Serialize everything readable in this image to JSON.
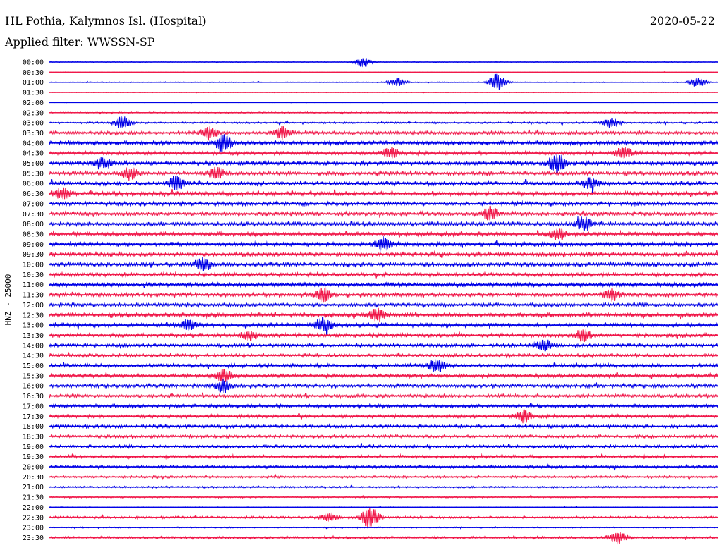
{
  "header": {
    "station": "HL Pothia, Kalymnos Isl. (Hospital)",
    "filter": "Applied filter: WWSSN-SP",
    "date": "2020-05-22"
  },
  "colors": {
    "odd": "#0000e6",
    "even": "#f0184a"
  },
  "chart_data": {
    "type": "line",
    "title": "HL Pothia, Kalymnos Isl. (Hospital)",
    "ylabel": "HNZ - 25000",
    "row_labels": [
      "00:00",
      "00:30",
      "01:00",
      "01:30",
      "02:00",
      "02:30",
      "03:00",
      "03:30",
      "04:00",
      "04:30",
      "05:00",
      "05:30",
      "06:00",
      "06:30",
      "07:00",
      "07:30",
      "08:00",
      "08:30",
      "09:00",
      "09:30",
      "10:00",
      "10:30",
      "11:00",
      "11:30",
      "12:00",
      "12:30",
      "13:00",
      "13:30",
      "14:00",
      "14:30",
      "15:00",
      "15:30",
      "16:00",
      "16:30",
      "17:00",
      "17:30",
      "18:00",
      "18:30",
      "19:00",
      "19:30",
      "20:00",
      "20:30",
      "21:00",
      "21:30",
      "22:00",
      "22:30",
      "23:00",
      "23:30"
    ],
    "noise_level": [
      0.5,
      0.3,
      0.6,
      0.4,
      0.2,
      0.8,
      1.2,
      2.2,
      2.5,
      2.3,
      2.6,
      2.5,
      2.4,
      2.6,
      2.4,
      2.6,
      2.6,
      2.5,
      2.6,
      2.6,
      2.6,
      2.5,
      2.6,
      2.6,
      2.4,
      2.5,
      2.5,
      2.5,
      2.3,
      2.2,
      2.3,
      2.3,
      2.4,
      2.2,
      2.2,
      2.2,
      2.1,
      2.0,
      2.0,
      1.9,
      1.8,
      1.5,
      1.2,
      1.0,
      0.6,
      1.5,
      0.8,
      1.6
    ],
    "events": [
      {
        "row": "00:00",
        "x": 0.47,
        "amp": 7
      },
      {
        "row": "01:00",
        "x": 0.52,
        "amp": 6
      },
      {
        "row": "01:00",
        "x": 0.67,
        "amp": 12
      },
      {
        "row": "01:00",
        "x": 0.97,
        "amp": 7
      },
      {
        "row": "03:00",
        "x": 0.11,
        "amp": 9
      },
      {
        "row": "03:00",
        "x": 0.84,
        "amp": 7
      },
      {
        "row": "03:30",
        "x": 0.24,
        "amp": 9
      },
      {
        "row": "03:30",
        "x": 0.35,
        "amp": 9
      },
      {
        "row": "04:00",
        "x": 0.26,
        "amp": 12
      },
      {
        "row": "04:30",
        "x": 0.51,
        "amp": 8
      },
      {
        "row": "04:30",
        "x": 0.86,
        "amp": 8
      },
      {
        "row": "05:00",
        "x": 0.08,
        "amp": 8
      },
      {
        "row": "05:00",
        "x": 0.76,
        "amp": 12
      },
      {
        "row": "05:30",
        "x": 0.12,
        "amp": 9
      },
      {
        "row": "05:30",
        "x": 0.25,
        "amp": 8
      },
      {
        "row": "06:00",
        "x": 0.19,
        "amp": 10
      },
      {
        "row": "06:00",
        "x": 0.81,
        "amp": 8
      },
      {
        "row": "06:30",
        "x": 0.02,
        "amp": 8
      },
      {
        "row": "07:30",
        "x": 0.66,
        "amp": 9
      },
      {
        "row": "08:00",
        "x": 0.8,
        "amp": 10
      },
      {
        "row": "08:30",
        "x": 0.76,
        "amp": 7
      },
      {
        "row": "09:00",
        "x": 0.5,
        "amp": 9
      },
      {
        "row": "10:00",
        "x": 0.23,
        "amp": 8
      },
      {
        "row": "11:30",
        "x": 0.41,
        "amp": 10
      },
      {
        "row": "11:30",
        "x": 0.84,
        "amp": 8
      },
      {
        "row": "12:30",
        "x": 0.49,
        "amp": 9
      },
      {
        "row": "13:00",
        "x": 0.21,
        "amp": 7
      },
      {
        "row": "13:00",
        "x": 0.41,
        "amp": 10
      },
      {
        "row": "13:30",
        "x": 0.3,
        "amp": 7
      },
      {
        "row": "13:30",
        "x": 0.8,
        "amp": 9
      },
      {
        "row": "14:00",
        "x": 0.74,
        "amp": 8
      },
      {
        "row": "15:00",
        "x": 0.58,
        "amp": 9
      },
      {
        "row": "15:30",
        "x": 0.26,
        "amp": 9
      },
      {
        "row": "16:00",
        "x": 0.26,
        "amp": 9
      },
      {
        "row": "17:30",
        "x": 0.71,
        "amp": 8
      },
      {
        "row": "22:30",
        "x": 0.42,
        "amp": 6
      },
      {
        "row": "22:30",
        "x": 0.48,
        "amp": 16
      },
      {
        "row": "23:30",
        "x": 0.85,
        "amp": 9
      }
    ]
  }
}
